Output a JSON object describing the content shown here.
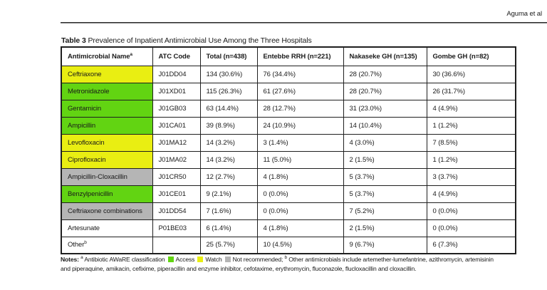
{
  "page": {
    "running_head": "Aguma et al"
  },
  "colors": {
    "access": "#62D412",
    "watch": "#E9EE12",
    "not_recommended": "#B5B5B5",
    "border": "#1F1F1F"
  },
  "table": {
    "title_label": "Table 3",
    "title_text": "Prevalence of Inpatient Antimicrobial Use Among the Three Hospitals",
    "columns": [
      {
        "label": "Antimicrobial Name",
        "superscript": "a"
      },
      {
        "label": "ATC Code",
        "superscript": ""
      },
      {
        "label": "Total (n=438)",
        "superscript": ""
      },
      {
        "label": "Entebbe RRH (n=221)",
        "superscript": ""
      },
      {
        "label": "Nakaseke GH (n=135)",
        "superscript": ""
      },
      {
        "label": "Gombe GH (n=82)",
        "superscript": ""
      }
    ],
    "rows": [
      {
        "name": "Ceftriaxone",
        "name_sup": "",
        "category": "watch",
        "atc": "J01DD04",
        "total": "134 (30.6%)",
        "entebbe": "76 (34.4%)",
        "nakaseke": "28 (20.7%)",
        "gombe": "30 (36.6%)"
      },
      {
        "name": "Metronidazole",
        "name_sup": "",
        "category": "access",
        "atc": "J01XD01",
        "total": "115 (26.3%)",
        "entebbe": "61 (27.6%)",
        "nakaseke": "28 (20.7%)",
        "gombe": "26 (31.7%)"
      },
      {
        "name": "Gentamicin",
        "name_sup": "",
        "category": "access",
        "atc": "J01GB03",
        "total": "63 (14.4%)",
        "entebbe": "28 (12.7%)",
        "nakaseke": "31 (23.0%)",
        "gombe": "4 (4.9%)"
      },
      {
        "name": "Ampicillin",
        "name_sup": "",
        "category": "access",
        "atc": "J01CA01",
        "total": "39 (8.9%)",
        "entebbe": "24 (10.9%)",
        "nakaseke": "14 (10.4%)",
        "gombe": "1 (1.2%)"
      },
      {
        "name": "Levofloxacin",
        "name_sup": "",
        "category": "watch",
        "atc": "J01MA12",
        "total": "14 (3.2%)",
        "entebbe": "3 (1.4%)",
        "nakaseke": "4 (3.0%)",
        "gombe": "7 (8.5%)"
      },
      {
        "name": "Ciprofloxacin",
        "name_sup": "",
        "category": "watch",
        "atc": "J01MA02",
        "total": "14 (3.2%)",
        "entebbe": "11 (5.0%)",
        "nakaseke": "2 (1.5%)",
        "gombe": "1 (1.2%)"
      },
      {
        "name": "Ampicillin-Cloxacillin",
        "name_sup": "",
        "category": "not_recommended",
        "atc": "J01CR50",
        "total": "12 (2.7%)",
        "entebbe": "4 (1.8%)",
        "nakaseke": "5 (3.7%)",
        "gombe": "3 (3.7%)"
      },
      {
        "name": "Benzylpenicillin",
        "name_sup": "",
        "category": "access",
        "atc": "J01CE01",
        "total": "9 (2.1%)",
        "entebbe": "0 (0.0%)",
        "nakaseke": "5 (3.7%)",
        "gombe": "4 (4.9%)"
      },
      {
        "name": "Ceftriaxone combinations",
        "name_sup": "",
        "category": "not_recommended",
        "atc": "J01DD54",
        "total": "7 (1.6%)",
        "entebbe": "0 (0.0%)",
        "nakaseke": "7 (5.2%)",
        "gombe": "0 (0.0%)"
      },
      {
        "name": "Artesunate",
        "name_sup": "",
        "category": "none",
        "atc": "P01BE03",
        "total": "6 (1.4%)",
        "entebbe": "4 (1.8%)",
        "nakaseke": "2 (1.5%)",
        "gombe": "0 (0.0%)"
      },
      {
        "name": "Other",
        "name_sup": "b",
        "category": "none",
        "atc": "",
        "total": "25 (5.7%)",
        "entebbe": "10 (4.5%)",
        "nakaseke": "9 (6.7%)",
        "gombe": "6 (7.3%)"
      }
    ]
  },
  "notes": {
    "label": "Notes:",
    "sup_a": "a",
    "classification_text": "Antibiotic AWaRE classification",
    "legend": [
      {
        "color_key": "access",
        "label": "Access"
      },
      {
        "color_key": "watch",
        "label": "Watch"
      },
      {
        "color_key": "not_recommended",
        "label": "Not recommended;"
      }
    ],
    "sup_b": "b",
    "other_text": "Other antimicrobials include artemether-lumefantrine, azithromycin, artemisinin and piperaquine, amikacin, cefixime, piperacillin and enzyme inhibitor, cefotaxime, erythromycin, fluconazole, flucloxacillin and cloxacillin."
  }
}
